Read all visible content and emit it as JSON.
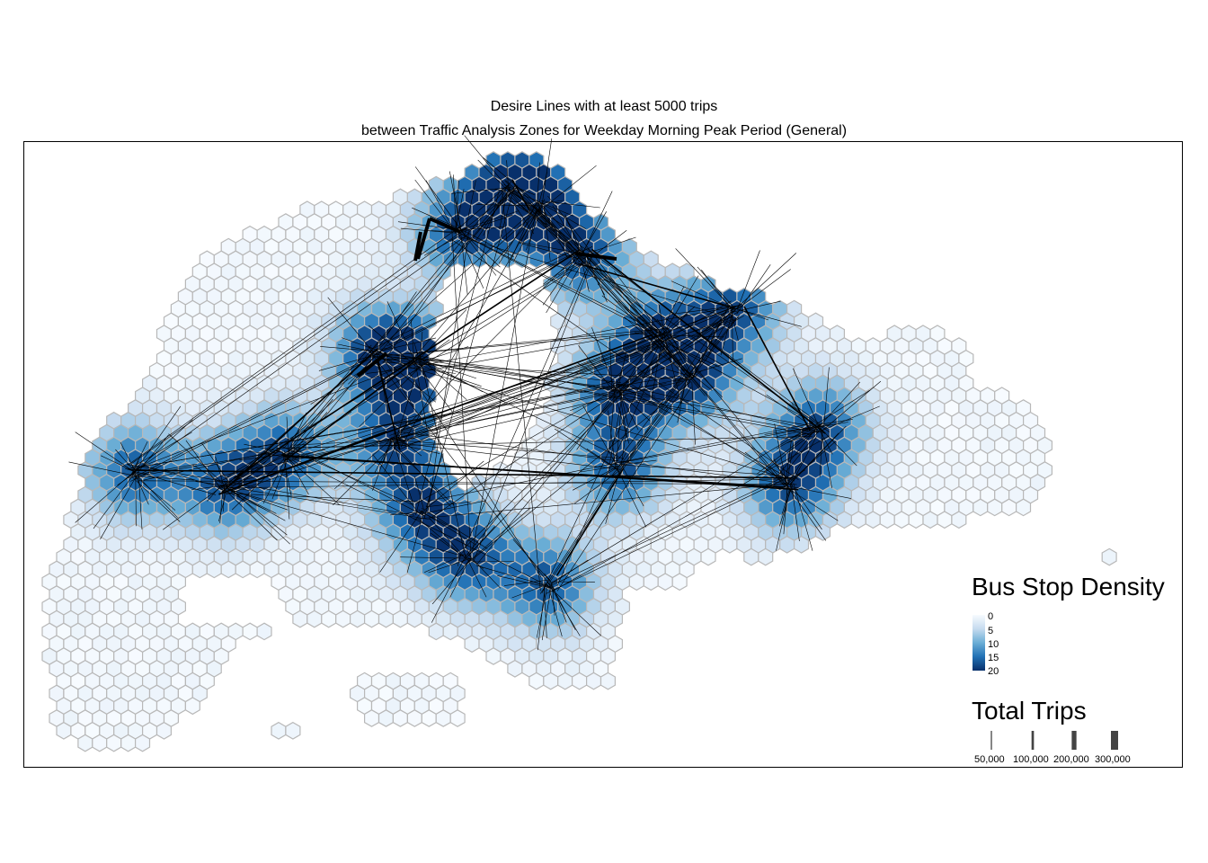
{
  "title": "Desire Lines with at least 5000 trips",
  "subtitle": "between Traffic Analysis Zones for Weekday Morning Peak Period (General)",
  "legend_density": {
    "title": "Bus Stop Density",
    "labels": [
      "0",
      "5",
      "10",
      "15",
      "20"
    ],
    "colors": [
      "#f7fbff",
      "#c6dbef",
      "#6baed6",
      "#2171b5",
      "#08306b"
    ]
  },
  "legend_trips": {
    "title": "Total Trips",
    "labels": [
      "50,000",
      "100,000",
      "200,000",
      "300,000"
    ],
    "values": [
      50000,
      100000,
      200000,
      300000
    ]
  },
  "colors": {
    "hex_stroke": "#b8b8b8",
    "line": "#000000",
    "frame": "#000000"
  }
}
